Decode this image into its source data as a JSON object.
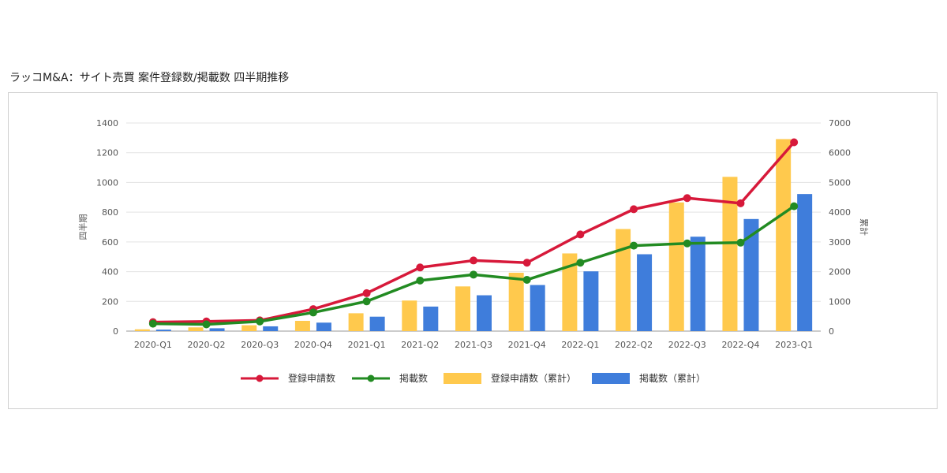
{
  "title": "ラッコM&A：サイト売買 案件登録数/掲載数 四半期推移",
  "chart_data": {
    "type": "bar+line",
    "categories": [
      "2020-Q1",
      "2020-Q2",
      "2020-Q3",
      "2020-Q4",
      "2021-Q1",
      "2021-Q2",
      "2021-Q3",
      "2021-Q4",
      "2022-Q1",
      "2022-Q2",
      "2022-Q3",
      "2022-Q4",
      "2023-Q1"
    ],
    "y_left": {
      "label": "四半期",
      "min": 0,
      "max": 1400,
      "ticks": [
        "0",
        "200",
        "400",
        "600",
        "800",
        "1000",
        "1200",
        "1400"
      ]
    },
    "y_right": {
      "label": "累計",
      "min": 0,
      "max": 7000,
      "ticks": [
        "0",
        "1000",
        "2000",
        "3000",
        "4000",
        "5000",
        "6000",
        "7000"
      ]
    },
    "grid": true,
    "legend_position": "bottom",
    "series": [
      {
        "name": "登録申請数",
        "type": "line",
        "axis": "left",
        "color": "#d7193a",
        "values": [
          60,
          65,
          72,
          148,
          255,
          428,
          475,
          460,
          650,
          820,
          895,
          860,
          1270
        ]
      },
      {
        "name": "掲載数",
        "type": "line",
        "axis": "left",
        "color": "#228b22",
        "values": [
          50,
          45,
          65,
          125,
          200,
          340,
          380,
          345,
          460,
          575,
          590,
          595,
          840
        ]
      },
      {
        "name": "登録申請数（累計）",
        "type": "bar",
        "axis": "right",
        "color": "#ffc94d",
        "values": [
          60,
          125,
          197,
          345,
          600,
          1028,
          1503,
          1963,
          2613,
          3433,
          4328,
          5188,
          6458
        ]
      },
      {
        "name": "掲載数（累計）",
        "type": "bar",
        "axis": "right",
        "color": "#3f7ddb",
        "values": [
          50,
          95,
          160,
          285,
          485,
          825,
          1205,
          1550,
          2010,
          2585,
          3175,
          3770,
          4610
        ]
      }
    ]
  }
}
